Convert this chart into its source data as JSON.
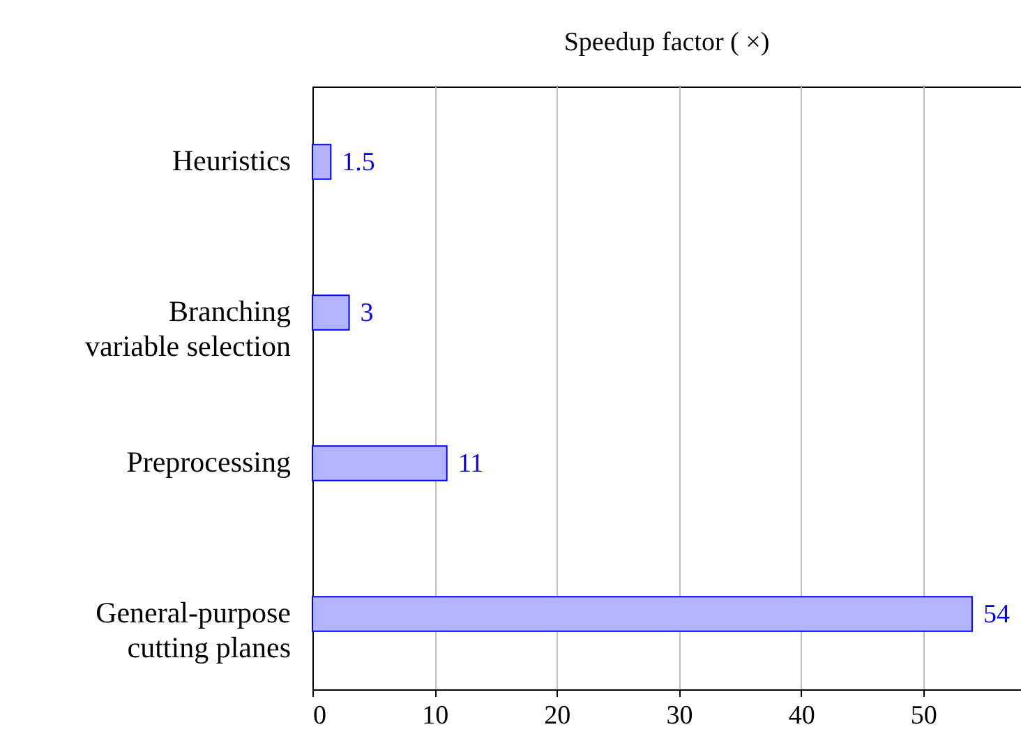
{
  "chart_data": {
    "type": "bar",
    "orientation": "horizontal",
    "title": "Speedup factor ( ×)",
    "categories": [
      "Heuristics",
      "Branching variable selection",
      "Preprocessing",
      "General-purpose cutting planes"
    ],
    "values": [
      1.5,
      3,
      11,
      54
    ],
    "color": "#b3b3ff",
    "data_labels": true,
    "xlim": [
      0,
      58
    ],
    "xticks": [
      0,
      10,
      20,
      30,
      40,
      50
    ],
    "grid": "x"
  }
}
